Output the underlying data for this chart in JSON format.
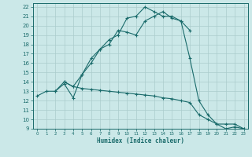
{
  "xlabel": "Humidex (Indice chaleur)",
  "bg_color": "#cbe8e8",
  "grid_color": "#aacccc",
  "line_color": "#1a6b6b",
  "xlim": [
    -0.5,
    23.5
  ],
  "ylim": [
    9,
    22.4
  ],
  "xticks": [
    0,
    1,
    2,
    3,
    4,
    5,
    6,
    7,
    8,
    9,
    10,
    11,
    12,
    13,
    14,
    15,
    16,
    17,
    18,
    19,
    20,
    21,
    22,
    23
  ],
  "yticks": [
    9,
    10,
    11,
    12,
    13,
    14,
    15,
    16,
    17,
    18,
    19,
    20,
    21,
    22
  ],
  "line1_x": [
    0,
    1,
    2,
    3,
    4,
    5,
    6,
    7,
    8,
    9,
    10,
    11,
    12,
    13,
    14,
    15,
    16,
    17,
    18,
    19,
    20,
    21,
    22,
    23
  ],
  "line1_y": [
    12.5,
    13.0,
    13.0,
    13.8,
    12.3,
    14.8,
    16.0,
    17.5,
    18.5,
    19.0,
    20.8,
    21.0,
    22.0,
    21.5,
    21.0,
    21.0,
    20.5,
    16.5,
    12.0,
    10.5,
    9.5,
    9.5,
    9.5,
    9.0
  ],
  "line2_x": [
    2,
    3,
    4,
    5,
    6,
    7,
    8,
    9,
    10,
    11,
    12,
    13,
    14,
    15,
    16,
    17
  ],
  "line2_y": [
    13.0,
    14.0,
    13.5,
    14.8,
    16.5,
    17.5,
    18.0,
    19.5,
    19.3,
    19.0,
    20.5,
    21.0,
    21.5,
    20.8,
    20.5,
    19.5
  ],
  "line3_x": [
    3,
    4,
    5,
    6,
    7,
    8,
    9,
    10,
    11,
    12,
    13,
    14,
    15,
    16,
    17,
    18,
    19,
    20,
    21,
    22,
    23
  ],
  "line3_y": [
    14.0,
    13.5,
    13.3,
    13.2,
    13.1,
    13.0,
    12.9,
    12.8,
    12.7,
    12.6,
    12.5,
    12.3,
    12.2,
    12.0,
    11.8,
    10.5,
    10.0,
    9.5,
    9.0,
    9.2,
    9.0
  ]
}
